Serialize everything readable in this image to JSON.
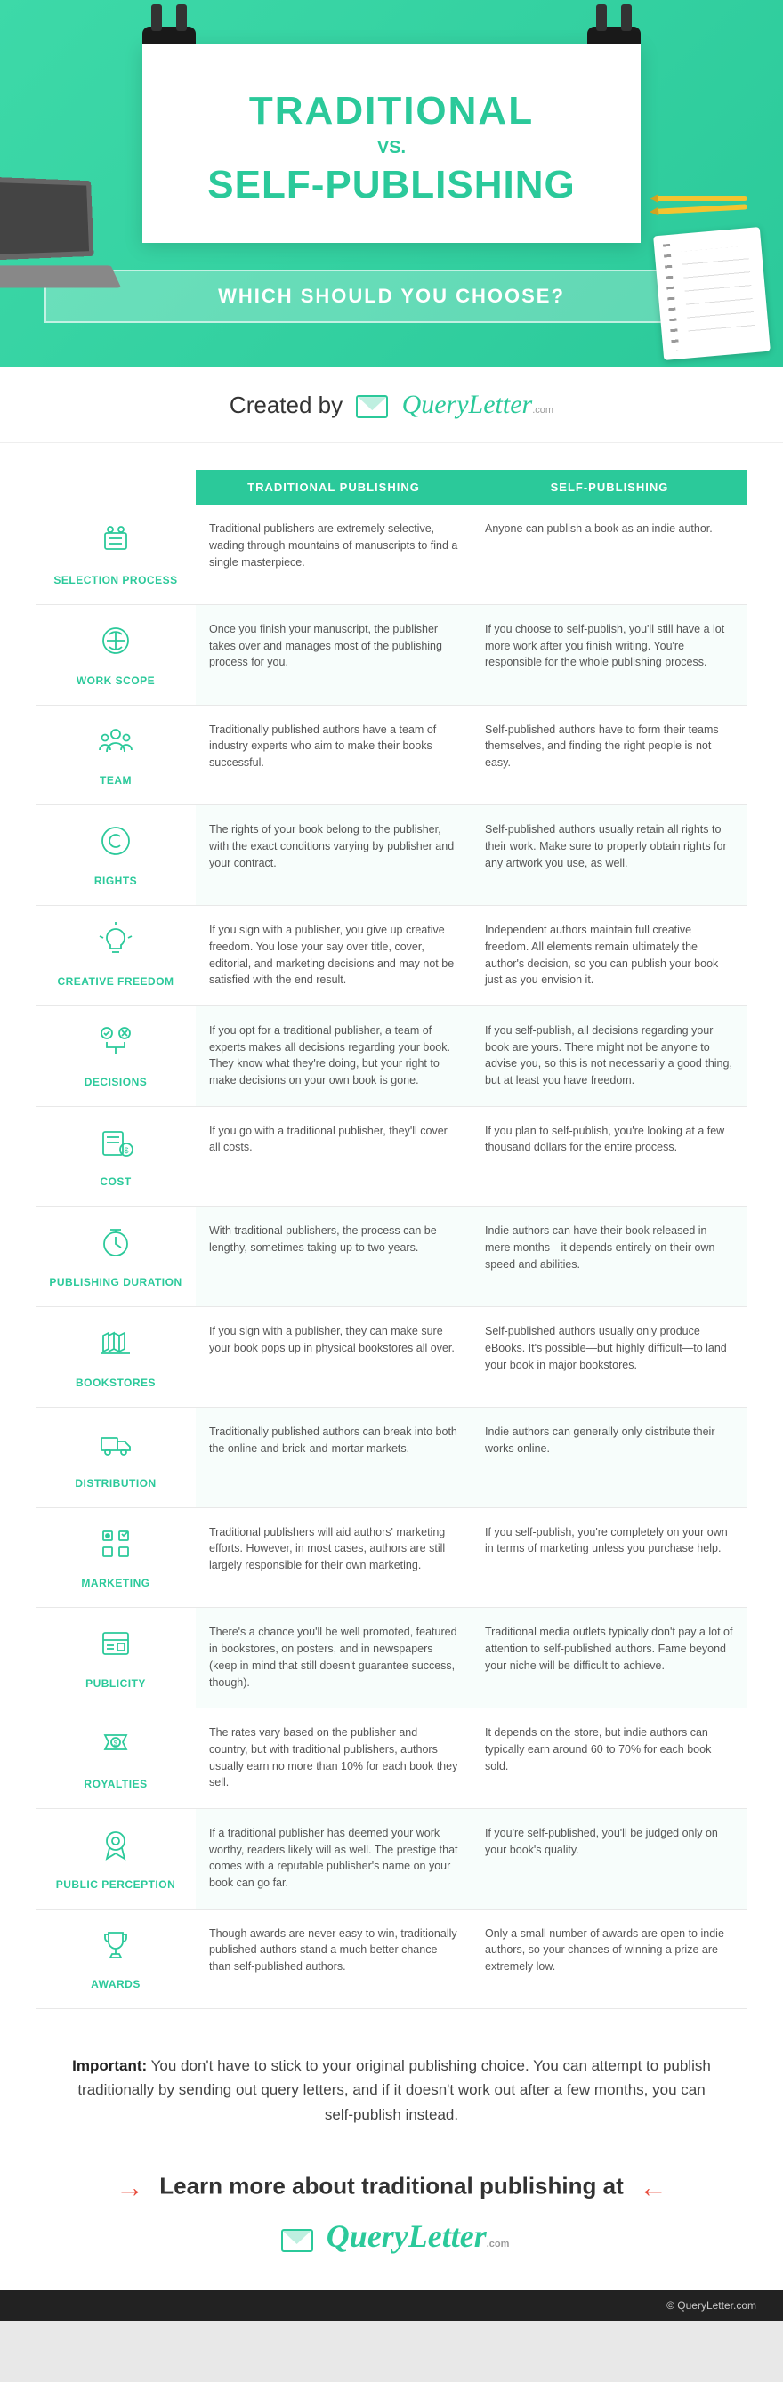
{
  "hero": {
    "title1": "TRADITIONAL",
    "vs": "VS.",
    "title2": "SELF-PUBLISHING",
    "subtitle": "WHICH SHOULD YOU CHOOSE?"
  },
  "created_by": {
    "prefix": "Created by",
    "brand": "QueryLetter",
    "brand_sub": ".com"
  },
  "table": {
    "header_a": "TRADITIONAL PUBLISHING",
    "header_b": "SELF-PUBLISHING",
    "rows": [
      {
        "icon": "selection",
        "label": "SELECTION PROCESS",
        "a": "Traditional publishers are extremely selective, wading through mountains of manuscripts to find a single masterpiece.",
        "b": "Anyone can publish a book as an indie author."
      },
      {
        "icon": "scope",
        "label": "WORK SCOPE",
        "a": "Once you finish your manuscript, the publisher takes over and manages most of the publishing process for you.",
        "b": "If you choose to self-publish, you'll still have a lot more work after you finish writing. You're responsible for the whole publishing process."
      },
      {
        "icon": "team",
        "label": "TEAM",
        "a": "Traditionally published authors have a team of industry experts who aim to make their books successful.",
        "b": "Self-published authors have to form their teams themselves, and finding the right people is not easy."
      },
      {
        "icon": "rights",
        "label": "RIGHTS",
        "a": "The rights of your book belong to the publisher, with the exact conditions varying by publisher and your contract.",
        "b": "Self-published authors usually retain all rights to their work. Make sure to properly obtain rights for any artwork you use, as well."
      },
      {
        "icon": "creative",
        "label": "CREATIVE FREEDOM",
        "a": "If you sign with a publisher, you give up creative freedom. You lose your say over title, cover, editorial, and marketing decisions and may not be satisfied with the end result.",
        "b": "Independent authors maintain full creative freedom. All elements remain ultimately the author's decision, so you can publish your book just as you envision it."
      },
      {
        "icon": "decisions",
        "label": "DECISIONS",
        "a": "If you opt for a traditional publisher, a team of experts makes all decisions regarding your book. They know what they're doing, but your right to make decisions on your own book is gone.",
        "b": "If you self-publish, all decisions regarding your book are yours. There might not be anyone to advise you, so this is not necessarily a good thing, but at least you have freedom."
      },
      {
        "icon": "cost",
        "label": "COST",
        "a": "If you go with a traditional publisher, they'll cover all costs.",
        "b": "If you plan to self-publish, you're looking at a few thousand dollars for the entire process."
      },
      {
        "icon": "duration",
        "label": "PUBLISHING DURATION",
        "a": "With traditional publishers, the process can be lengthy, sometimes taking up to two years.",
        "b": "Indie authors can have their book released in mere months—it depends entirely on their own speed and abilities."
      },
      {
        "icon": "bookstores",
        "label": "BOOKSTORES",
        "a": "If you sign with a publisher, they can make sure your book pops up in physical bookstores all over.",
        "b": "Self-published authors usually only produce eBooks. It's possible—but highly difficult—to land your book in major bookstores."
      },
      {
        "icon": "distribution",
        "label": "DISTRIBUTION",
        "a": "Traditionally published authors can break into both the online and brick-and-mortar markets.",
        "b": "Indie authors can generally only distribute their works online."
      },
      {
        "icon": "marketing",
        "label": "MARKETING",
        "a": "Traditional publishers will aid authors' marketing efforts. However, in most cases, authors are still largely responsible for their own marketing.",
        "b": "If you self-publish, you're completely on your own in terms of marketing unless you purchase help."
      },
      {
        "icon": "publicity",
        "label": "PUBLICITY",
        "a": "There's a chance you'll be well promoted, featured in bookstores, on posters, and in newspapers (keep in mind that still doesn't guarantee success, though).",
        "b": "Traditional media outlets typically don't pay a lot of attention to self-published authors. Fame beyond your niche will be difficult to achieve."
      },
      {
        "icon": "royalties",
        "label": "ROYALTIES",
        "a": "The rates vary based on the publisher and country, but with traditional publishers, authors usually earn no more than 10% for each book they sell.",
        "b": "It depends on the store, but indie authors can typically earn around 60 to 70% for each book sold."
      },
      {
        "icon": "perception",
        "label": "PUBLIC PERCEPTION",
        "a": "If a traditional publisher has deemed your work worthy, readers likely will as well. The prestige that comes with a reputable publisher's name on your book can go far.",
        "b": "If you're self-published, you'll be judged only on your book's quality."
      },
      {
        "icon": "awards",
        "label": "AWARDS",
        "a": "Though awards are never easy to win, traditionally published authors stand a much better chance than self-published authors.",
        "b": "Only a small number of awards are open to indie authors, so your chances of winning a prize are extremely low."
      }
    ]
  },
  "important": {
    "label": "Important:",
    "text": " You don't have to stick to your original publishing choice. You can attempt to publish traditionally by sending out query letters, and if it doesn't work out after a few months, you can self-publish instead."
  },
  "learn_more": {
    "text": "Learn more about traditional publishing at",
    "brand": "QueryLetter",
    "brand_sub": ".com"
  },
  "footer": "© QueryLetter.com"
}
